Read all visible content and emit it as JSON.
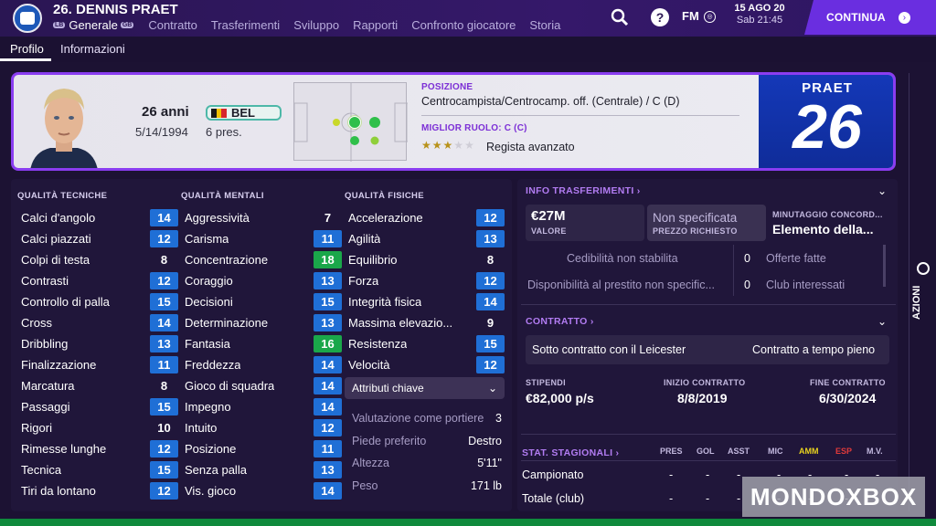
{
  "header": {
    "title": "26. DENNIS PRAET",
    "nav_active": "Generale",
    "nav_pill_left": "LB",
    "nav_pill_right": "GB",
    "nav_items": [
      "Contratto",
      "Trasferimenti",
      "Sviluppo",
      "Rapporti",
      "Confronto giocatore",
      "Storia"
    ],
    "fm_label": "FM",
    "date": "15 AGO 20",
    "time": "Sab 21:45",
    "continue_label": "CONTINUA",
    "help_glyph": "?"
  },
  "subtabs": [
    "Profilo",
    "Informazioni"
  ],
  "profile": {
    "age": "26 anni",
    "dob": "5/14/1994",
    "nation_code": "BEL",
    "caps": "6 pres.",
    "position_title": "POSIZIONE",
    "position_value": "Centrocampista/Centrocamp. off. (Centrale) / C (D)",
    "best_role_title": "MIGLIOR RUOLO: C (C)",
    "best_role_value": "Regista avanzato",
    "role_stars": 3,
    "role_stars_max": 5,
    "shirt_name": "PRAET",
    "shirt_number": "26",
    "flag_colors": [
      "#1a1a1a",
      "#f2c200",
      "#d6262d"
    ]
  },
  "attributes": {
    "technical_title": "QUALITÀ TECNICHE",
    "mental_title": "QUALITÀ MENTALI",
    "physical_title": "QUALITÀ FISICHE",
    "technical": [
      {
        "name": "Calci d'angolo",
        "value": "14",
        "style": "blue"
      },
      {
        "name": "Calci piazzati",
        "value": "12",
        "style": "blue"
      },
      {
        "name": "Colpi di testa",
        "value": "8",
        "style": "plain"
      },
      {
        "name": "Contrasti",
        "value": "12",
        "style": "blue"
      },
      {
        "name": "Controllo di palla",
        "value": "15",
        "style": "blue"
      },
      {
        "name": "Cross",
        "value": "14",
        "style": "blue"
      },
      {
        "name": "Dribbling",
        "value": "13",
        "style": "blue"
      },
      {
        "name": "Finalizzazione",
        "value": "11",
        "style": "blue"
      },
      {
        "name": "Marcatura",
        "value": "8",
        "style": "plain"
      },
      {
        "name": "Passaggi",
        "value": "15",
        "style": "blue"
      },
      {
        "name": "Rigori",
        "value": "10",
        "style": "plain"
      },
      {
        "name": "Rimesse lunghe",
        "value": "12",
        "style": "blue"
      },
      {
        "name": "Tecnica",
        "value": "15",
        "style": "blue"
      },
      {
        "name": "Tiri da lontano",
        "value": "12",
        "style": "blue"
      }
    ],
    "mental": [
      {
        "name": "Aggressività",
        "value": "7",
        "style": "plain"
      },
      {
        "name": "Carisma",
        "value": "11",
        "style": "blue"
      },
      {
        "name": "Concentrazione",
        "value": "18",
        "style": "green"
      },
      {
        "name": "Coraggio",
        "value": "13",
        "style": "blue"
      },
      {
        "name": "Decisioni",
        "value": "15",
        "style": "blue"
      },
      {
        "name": "Determinazione",
        "value": "13",
        "style": "blue"
      },
      {
        "name": "Fantasia",
        "value": "16",
        "style": "green"
      },
      {
        "name": "Freddezza",
        "value": "14",
        "style": "blue"
      },
      {
        "name": "Gioco di squadra",
        "value": "14",
        "style": "blue"
      },
      {
        "name": "Impegno",
        "value": "14",
        "style": "blue"
      },
      {
        "name": "Intuito",
        "value": "12",
        "style": "blue"
      },
      {
        "name": "Posizione",
        "value": "11",
        "style": "blue"
      },
      {
        "name": "Senza palla",
        "value": "13",
        "style": "blue"
      },
      {
        "name": "Vis. gioco",
        "value": "14",
        "style": "blue"
      }
    ],
    "physical": [
      {
        "name": "Accelerazione",
        "value": "12",
        "style": "blue"
      },
      {
        "name": "Agilità",
        "value": "13",
        "style": "blue"
      },
      {
        "name": "Equilibrio",
        "value": "8",
        "style": "plain"
      },
      {
        "name": "Forza",
        "value": "12",
        "style": "blue"
      },
      {
        "name": "Integrità fisica",
        "value": "14",
        "style": "blue"
      },
      {
        "name": "Massima elevazio...",
        "value": "9",
        "style": "plain"
      },
      {
        "name": "Resistenza",
        "value": "15",
        "style": "blue"
      },
      {
        "name": "Velocità",
        "value": "12",
        "style": "blue"
      }
    ],
    "key_attributes_label": "Attributi chiave",
    "info": [
      {
        "label": "Valutazione come portiere",
        "value": "3"
      },
      {
        "label": "Piede preferito",
        "value": "Destro"
      },
      {
        "label": "Altezza",
        "value": "5'11\""
      },
      {
        "label": "Peso",
        "value": "171 lb"
      }
    ]
  },
  "transfer": {
    "title": "INFO TRASFERIMENTI",
    "value": "€27M",
    "value_caption": "VALORE",
    "asking": "Non specificata",
    "asking_caption": "PREZZO RICHIESTO",
    "minutes_caption": "MINUTAGGIO CONCORD...",
    "minutes_value": "Elemento della...",
    "transferability": "Cedibilità non stabilita",
    "loan_availability": "Disponibilità al prestito non specific...",
    "offers_count": "0",
    "offers_label": "Offerte fatte",
    "clubs_count": "0",
    "clubs_label": "Club interessati"
  },
  "contract": {
    "title": "CONTRATTO",
    "status": "Sotto contratto con il Leicester",
    "type": "Contratto a tempo pieno",
    "wage_caption": "STIPENDI",
    "wage": "€82,000 p/s",
    "start_caption": "INIZIO CONTRATTO",
    "start": "8/8/2019",
    "end_caption": "FINE CONTRATTO",
    "end": "6/30/2024"
  },
  "season_stats": {
    "title": "STAT. STAGIONALI",
    "columns": [
      "PRES",
      "GOL",
      "ASST",
      "MIC",
      "AMM",
      "ESP",
      "M.V."
    ],
    "column_colors": [
      "#c2b8de",
      "#c2b8de",
      "#c2b8de",
      "#c2b8de",
      "#e8d21e",
      "#e03a3a",
      "#c2b8de"
    ],
    "rows": [
      {
        "label": "Campionato",
        "values": [
          "-",
          "-",
          "-",
          "-",
          "-",
          "-",
          "-"
        ]
      },
      {
        "label": "Totale (club)",
        "values": [
          "-",
          "-",
          "-",
          "-",
          "-",
          "-",
          "-"
        ]
      }
    ]
  },
  "side": {
    "actions_label": "AZIONI"
  },
  "watermark": "MONDOXBOX",
  "colors": {
    "accent": "#8a3df0",
    "attr_blue": "#1f6fd6",
    "attr_green": "#1aa74a",
    "continue": "#6a2ee0"
  }
}
